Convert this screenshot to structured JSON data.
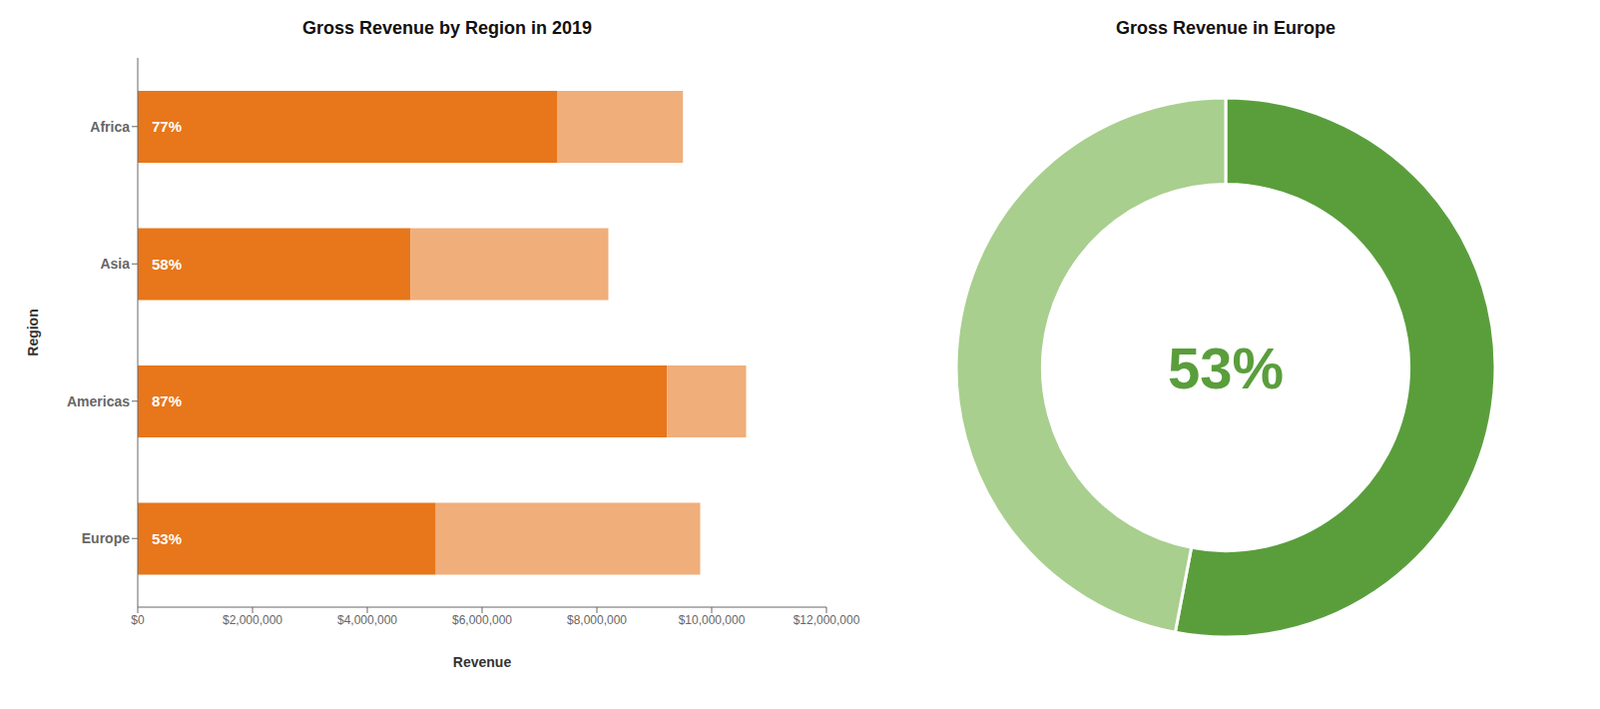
{
  "chart_data": [
    {
      "type": "bar",
      "title": "Gross Revenue by Region in 2019",
      "xlabel": "Revenue",
      "ylabel": "Region",
      "orientation": "horizontal",
      "stacked": true,
      "grid": false,
      "categories": [
        "Africa",
        "Asia",
        "Americas",
        "Europe"
      ],
      "series": [
        {
          "color": "#E8761A",
          "values": [
            7315000,
            4756000,
            9222000,
            5194000
          ]
        },
        {
          "color": "#F0AE7A",
          "values": [
            2185000,
            3444000,
            1378000,
            4606000
          ]
        }
      ],
      "annotations": [
        {
          "category": "Africa",
          "text": "77%"
        },
        {
          "category": "Asia",
          "text": "58%"
        },
        {
          "category": "Americas",
          "text": "87%"
        },
        {
          "category": "Europe",
          "text": "53%"
        }
      ],
      "xlim": [
        0,
        12000000
      ],
      "xticks": [
        {
          "value": 0,
          "label": "$0"
        },
        {
          "value": 2000000,
          "label": "$2,000,000"
        },
        {
          "value": 4000000,
          "label": "$4,000,000"
        },
        {
          "value": 6000000,
          "label": "$6,000,000"
        },
        {
          "value": 8000000,
          "label": "$8,000,000"
        },
        {
          "value": 10000000,
          "label": "$10,000,000"
        },
        {
          "value": 12000000,
          "label": "$12,000,000"
        }
      ]
    },
    {
      "type": "donut",
      "title": "Gross Revenue in Europe",
      "values": [
        53,
        47
      ],
      "colors": [
        "#5A9E3C",
        "#A8CF8E"
      ],
      "annotations": [
        {
          "text": "53%"
        }
      ]
    }
  ]
}
